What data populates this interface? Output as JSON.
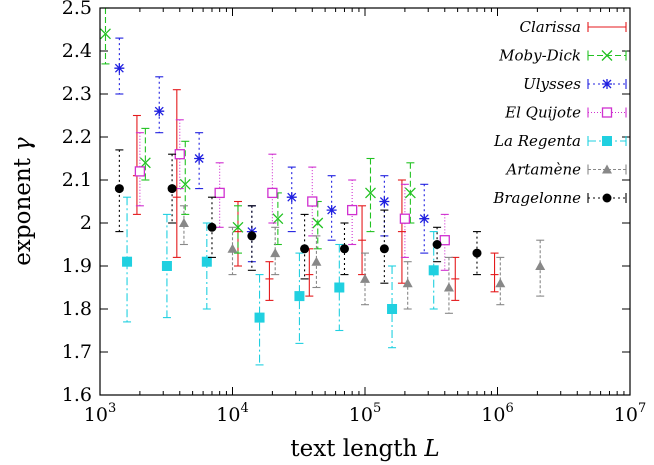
{
  "chart_data": {
    "type": "scatter",
    "xlabel": "text length",
    "xlabel_var": "L",
    "ylabel": "exponent",
    "ylabel_var": "γ",
    "x_scale": "log",
    "xlim": [
      1000,
      10000000
    ],
    "ylim": [
      1.6,
      2.5
    ],
    "x_ticks": [
      {
        "value": 1000,
        "base": "10",
        "exp": "3"
      },
      {
        "value": 10000,
        "base": "10",
        "exp": "4"
      },
      {
        "value": 100000,
        "base": "10",
        "exp": "5"
      },
      {
        "value": 1000000,
        "base": "10",
        "exp": "6"
      },
      {
        "value": 10000000,
        "base": "10",
        "exp": "7"
      }
    ],
    "y_ticks": [
      "1.6",
      "1.7",
      "1.8",
      "1.9",
      "2",
      "2.1",
      "2.2",
      "2.3",
      "2.4",
      "2.5"
    ],
    "grid": false,
    "legend_position": "top-right",
    "series": [
      {
        "name": "Clarissa",
        "color": "#e41a1c",
        "marker": "none",
        "dash": "",
        "points": [
          {
            "x": 1900,
            "y": 2.11,
            "lo": 2.02,
            "hi": 2.25
          },
          {
            "x": 3800,
            "y": 2.06,
            "lo": 1.92,
            "hi": 2.31
          },
          {
            "x": 11000,
            "y": 1.98,
            "lo": 1.9,
            "hi": 2.05
          },
          {
            "x": 19000,
            "y": 1.87,
            "lo": 1.82,
            "hi": 1.91
          },
          {
            "x": 38000,
            "y": 1.88,
            "lo": 1.83,
            "hi": 1.94
          },
          {
            "x": 95000,
            "y": 1.96,
            "lo": 1.88,
            "hi": 2.04
          },
          {
            "x": 190000,
            "y": 1.98,
            "lo": 1.86,
            "hi": 2.1
          },
          {
            "x": 480000,
            "y": 1.87,
            "lo": 1.82,
            "hi": 1.92
          },
          {
            "x": 950000,
            "y": 1.88,
            "lo": 1.84,
            "hi": 1.93
          }
        ]
      },
      {
        "name": "Moby-Dick",
        "color": "#22c222",
        "marker": "x",
        "dash": "6,3",
        "points": [
          {
            "x": 1100,
            "y": 2.44,
            "lo": 2.37,
            "hi": 2.5
          },
          {
            "x": 2200,
            "y": 2.14,
            "lo": 2.1,
            "hi": 2.22
          },
          {
            "x": 4400,
            "y": 2.09,
            "lo": 2.02,
            "hi": 2.19
          },
          {
            "x": 11000,
            "y": 1.99,
            "lo": 1.93,
            "hi": 2.04
          },
          {
            "x": 22000,
            "y": 2.01,
            "lo": 1.95,
            "hi": 2.07
          },
          {
            "x": 44000,
            "y": 2.0,
            "lo": 1.94,
            "hi": 2.05
          },
          {
            "x": 110000,
            "y": 2.07,
            "lo": 1.98,
            "hi": 2.15
          },
          {
            "x": 220000,
            "y": 2.07,
            "lo": 2.0,
            "hi": 2.14
          }
        ]
      },
      {
        "name": "Ulysses",
        "color": "#2020e0",
        "marker": "star",
        "dash": "2,3",
        "points": [
          {
            "x": 1400,
            "y": 2.36,
            "lo": 2.3,
            "hi": 2.43
          },
          {
            "x": 2800,
            "y": 2.26,
            "lo": 2.21,
            "hi": 2.34
          },
          {
            "x": 5600,
            "y": 2.15,
            "lo": 2.08,
            "hi": 2.21
          },
          {
            "x": 14000,
            "y": 1.98,
            "lo": 1.91,
            "hi": 2.04
          },
          {
            "x": 28000,
            "y": 2.06,
            "lo": 1.98,
            "hi": 2.13
          },
          {
            "x": 56000,
            "y": 2.03,
            "lo": 1.96,
            "hi": 2.11
          },
          {
            "x": 140000,
            "y": 2.05,
            "lo": 1.97,
            "hi": 2.11
          },
          {
            "x": 280000,
            "y": 2.01,
            "lo": 1.93,
            "hi": 2.09
          }
        ]
      },
      {
        "name": "El Quijote",
        "color": "#d030d0",
        "marker": "square-open",
        "dash": "1,2",
        "points": [
          {
            "x": 2000,
            "y": 2.12,
            "lo": 2.04,
            "hi": 2.21
          },
          {
            "x": 4000,
            "y": 2.16,
            "lo": 2.08,
            "hi": 2.24
          },
          {
            "x": 8000,
            "y": 2.07,
            "lo": 1.99,
            "hi": 2.14
          },
          {
            "x": 20000,
            "y": 2.07,
            "lo": 2.0,
            "hi": 2.16
          },
          {
            "x": 40000,
            "y": 2.05,
            "lo": 1.97,
            "hi": 2.13
          },
          {
            "x": 80000,
            "y": 2.03,
            "lo": 1.95,
            "hi": 2.1
          },
          {
            "x": 200000,
            "y": 2.01,
            "lo": 1.92,
            "hi": 2.09
          },
          {
            "x": 400000,
            "y": 1.96,
            "lo": 1.89,
            "hi": 2.02
          }
        ]
      },
      {
        "name": "La Regenta",
        "color": "#20d0e0",
        "marker": "square-filled",
        "dash": "8,3,2,3",
        "points": [
          {
            "x": 1600,
            "y": 1.91,
            "lo": 1.77,
            "hi": 2.06
          },
          {
            "x": 3200,
            "y": 1.9,
            "lo": 1.78,
            "hi": 2.02
          },
          {
            "x": 6400,
            "y": 1.91,
            "lo": 1.8,
            "hi": 2.0
          },
          {
            "x": 16000,
            "y": 1.78,
            "lo": 1.67,
            "hi": 1.88
          },
          {
            "x": 32000,
            "y": 1.83,
            "lo": 1.72,
            "hi": 1.93
          },
          {
            "x": 64000,
            "y": 1.85,
            "lo": 1.75,
            "hi": 1.95
          },
          {
            "x": 160000,
            "y": 1.8,
            "lo": 1.71,
            "hi": 1.9
          },
          {
            "x": 330000,
            "y": 1.89,
            "lo": 1.8,
            "hi": 1.98
          }
        ]
      },
      {
        "name": "Artamène",
        "color": "#888888",
        "marker": "triangle",
        "dash": "3,2",
        "points": [
          {
            "x": 4300,
            "y": 2.0,
            "lo": 1.95,
            "hi": 2.04
          },
          {
            "x": 10000,
            "y": 1.94,
            "lo": 1.88,
            "hi": 1.99
          },
          {
            "x": 21000,
            "y": 1.93,
            "lo": 1.88,
            "hi": 1.99
          },
          {
            "x": 43000,
            "y": 1.91,
            "lo": 1.85,
            "hi": 1.97
          },
          {
            "x": 100000,
            "y": 1.87,
            "lo": 1.81,
            "hi": 1.93
          },
          {
            "x": 210000,
            "y": 1.86,
            "lo": 1.8,
            "hi": 1.91
          },
          {
            "x": 430000,
            "y": 1.85,
            "lo": 1.79,
            "hi": 1.92
          },
          {
            "x": 1050000,
            "y": 1.86,
            "lo": 1.81,
            "hi": 1.92
          },
          {
            "x": 2100000,
            "y": 1.9,
            "lo": 1.83,
            "hi": 1.96
          }
        ]
      },
      {
        "name": "Bragelonne",
        "color": "#000000",
        "marker": "circle",
        "dash": "2,3",
        "points": [
          {
            "x": 1400,
            "y": 2.08,
            "lo": 1.98,
            "hi": 2.17
          },
          {
            "x": 3500,
            "y": 2.08,
            "lo": 2.0,
            "hi": 2.16
          },
          {
            "x": 7000,
            "y": 1.99,
            "lo": 1.92,
            "hi": 2.06
          },
          {
            "x": 14000,
            "y": 1.97,
            "lo": 1.89,
            "hi": 2.04
          },
          {
            "x": 35000,
            "y": 1.94,
            "lo": 1.87,
            "hi": 2.02
          },
          {
            "x": 70000,
            "y": 1.94,
            "lo": 1.88,
            "hi": 2.0
          },
          {
            "x": 140000,
            "y": 1.94,
            "lo": 1.86,
            "hi": 2.03
          },
          {
            "x": 350000,
            "y": 1.95,
            "lo": 1.91,
            "hi": 1.99
          },
          {
            "x": 700000,
            "y": 1.93,
            "lo": 1.88,
            "hi": 1.98
          }
        ]
      }
    ]
  }
}
